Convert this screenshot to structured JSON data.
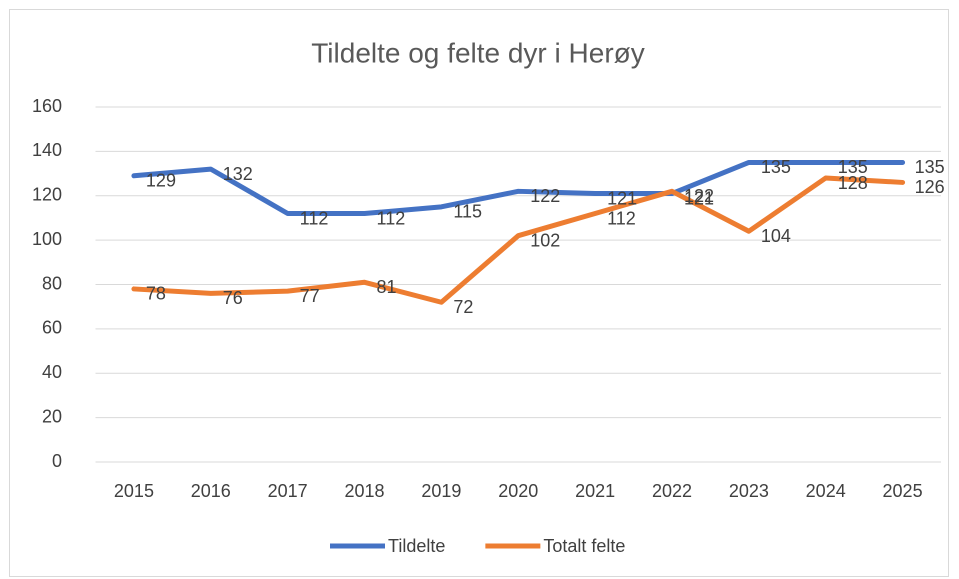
{
  "chart_data": {
    "type": "line",
    "title": "Tildelte og felte dyr i Herøy",
    "categories": [
      "2015",
      "2016",
      "2017",
      "2018",
      "2019",
      "2020",
      "2021",
      "2022",
      "2023",
      "2024",
      "2025"
    ],
    "series": [
      {
        "name": "Tildelte",
        "color": "#4472c4",
        "values": [
          129,
          132,
          112,
          112,
          115,
          122,
          121,
          121,
          135,
          135,
          135
        ]
      },
      {
        "name": "Totalt felte",
        "color": "#ed7d31",
        "values": [
          78,
          76,
          77,
          81,
          72,
          102,
          112,
          122,
          104,
          128,
          126
        ]
      }
    ],
    "ylim": [
      0,
      160
    ],
    "yticks": [
      0,
      20,
      40,
      60,
      80,
      100,
      120,
      140,
      160
    ],
    "grid": true,
    "legend": "bottom"
  }
}
